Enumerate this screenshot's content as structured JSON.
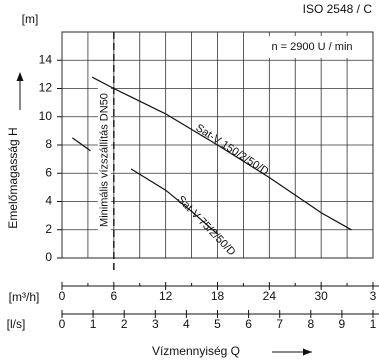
{
  "chart_data": {
    "type": "line",
    "standard": "ISO 2548 / C",
    "speed_note": "n = 2900  U / min",
    "y_unit": "[m]",
    "x_unit": "[m³/h]",
    "x2_unit": "[l/s]",
    "y_label": "Emelőmagasság H",
    "x_label": "Vízmennyiség Q",
    "min_flow_label": "Minimális vízszállítás DN50",
    "min_flow_x": 6,
    "xlim": [
      0,
      36
    ],
    "xticks": [
      0,
      6,
      12,
      18,
      24,
      30,
      {
        "value": 36,
        "label": "3"
      }
    ],
    "xminor": [
      3,
      9,
      15,
      21,
      27,
      33
    ],
    "x2lim": [
      0,
      10
    ],
    "x2ticks": [
      0,
      1,
      2,
      3,
      4,
      5,
      6,
      7,
      8,
      9,
      {
        "value": 10,
        "label": "1"
      }
    ],
    "ylim": [
      0,
      16
    ],
    "yticks": [
      0,
      2,
      4,
      6,
      8,
      10,
      12,
      14
    ],
    "grid": true,
    "series": [
      {
        "name": "Sat-V 150/2/50/D",
        "color": "#111111",
        "x": [
          3.5,
          6,
          12,
          18,
          24,
          30,
          33.5
        ],
        "values": [
          12.8,
          12.0,
          10.2,
          8.0,
          5.7,
          3.2,
          2.0
        ]
      },
      {
        "name": "Sat-V 75/2/50/D",
        "color": "#111111",
        "x": [
          1.2,
          3.3,
          5.8,
          8,
          12,
          15,
          18
        ],
        "values": [
          8.5,
          7.6,
          null,
          6.3,
          4.8,
          3.3,
          1.7
        ]
      }
    ]
  }
}
